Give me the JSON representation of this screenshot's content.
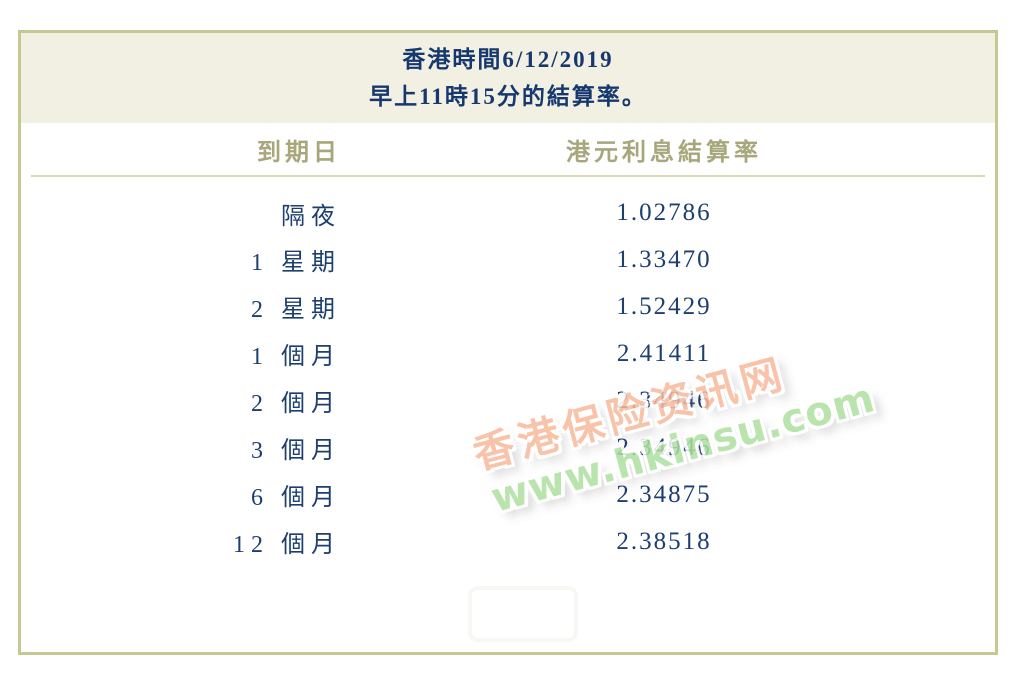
{
  "title": {
    "line1": "香港時間6/12/2019",
    "line2": "早上11時15分的結算率。"
  },
  "table": {
    "columns": {
      "tenor": "到期日",
      "rate": "港元利息結算率"
    },
    "rows": [
      {
        "tenor": "隔夜",
        "rate": "1.02786"
      },
      {
        "tenor": "1 星期",
        "rate": "1.33470"
      },
      {
        "tenor": "2 星期",
        "rate": "1.52429"
      },
      {
        "tenor": "1 個月",
        "rate": "2.41411"
      },
      {
        "tenor": "2 個月",
        "rate": "2.34946"
      },
      {
        "tenor": "3 個月",
        "rate": "2.34946"
      },
      {
        "tenor": "6 個月",
        "rate": "2.34875"
      },
      {
        "tenor": "12 個月",
        "rate": "2.38518"
      }
    ]
  },
  "watermark": {
    "line1": "香港保险资讯网",
    "line2": "www.hkinsu.com"
  },
  "colors": {
    "panel_border": "#c6c892",
    "title_background": "#f1f0e2",
    "title_text": "#17386e",
    "column_header_text": "#a7a77b",
    "header_divider": "#d9d9b6",
    "body_text": "#1c3e70",
    "watermark_cjk": "#f8b99c",
    "watermark_url": "#aee0a0"
  }
}
